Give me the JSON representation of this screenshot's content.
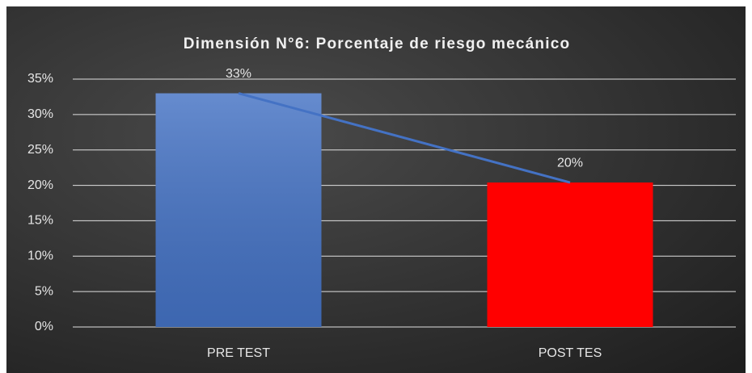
{
  "chart_data": {
    "type": "bar",
    "title": "Dimensión N°6: Porcentaje de riesgo mecánico",
    "categories": [
      "PRE TEST",
      "POST TES"
    ],
    "values": [
      33,
      20.4
    ],
    "value_labels": [
      "33%",
      "20%"
    ],
    "colors": [
      "#4472c4",
      "#ff0000"
    ],
    "line_color": "#4472c4",
    "ylim": [
      0,
      35
    ],
    "yticks": [
      {
        "value": 0,
        "label": "0%"
      },
      {
        "value": 5,
        "label": "5%"
      },
      {
        "value": 10,
        "label": "10%"
      },
      {
        "value": 15,
        "label": "15%"
      },
      {
        "value": 20,
        "label": "20%"
      },
      {
        "value": 25,
        "label": "25%"
      },
      {
        "value": 30,
        "label": "30%"
      },
      {
        "value": 35,
        "label": "35%"
      }
    ],
    "grid": true
  }
}
